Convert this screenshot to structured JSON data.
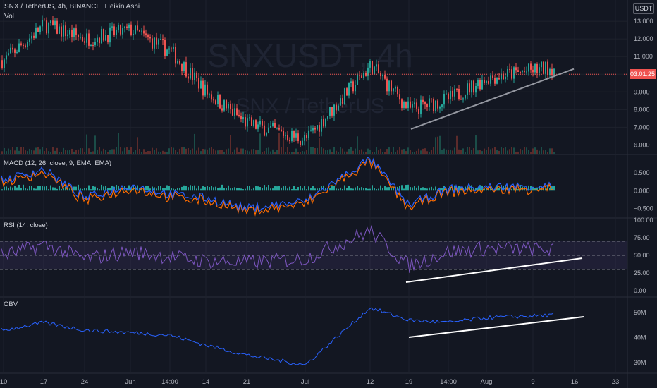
{
  "header": {
    "title": "SNX / TetherUS, 4h, BINANCE, Heikin Ashi",
    "vol_label": "Vol",
    "currency": "USDT",
    "watermark_symbol": "SNXUSDT, 4h",
    "watermark_name": "SNX / TetherUS",
    "last_price_tag": "03:01:25"
  },
  "panels": {
    "macd_label": "MACD (12, 26, close, 9, EMA, EMA)",
    "rsi_label": "RSI (14, close)",
    "obv_label": "OBV"
  },
  "price_axis": [
    "13.000",
    "12.000",
    "11.000",
    "10.000",
    "9.000",
    "8.000",
    "7.000",
    "6.000"
  ],
  "macd_axis": [
    "0.500",
    "0.000",
    "−0.500"
  ],
  "rsi_axis": [
    "100.00",
    "75.00",
    "50.00",
    "25.00",
    "0.00"
  ],
  "obv_axis": [
    "50M",
    "40M",
    "30M"
  ],
  "time_axis": [
    "10",
    "17",
    "24",
    "Jun",
    "14:00",
    "14",
    "21",
    "Jul",
    "12",
    "19",
    "14:00",
    "Aug",
    "9",
    "16",
    "23"
  ],
  "colors": {
    "bg": "#131722",
    "up": "#26a69a",
    "down": "#ef5350",
    "macd_line": "#2962ff",
    "signal_line": "#ff6d00",
    "rsi_line": "#7e57c2",
    "obv_line": "#2962ff",
    "trendline_price": "#9598a1",
    "trendline_indicator": "#ffffff"
  },
  "chart_data": [
    {
      "type": "line",
      "title": "SNX / TetherUS, 4h, BINANCE, Heikin Ashi",
      "x": [
        "10",
        "17",
        "24",
        "Jun",
        "14:00",
        "14",
        "21",
        "Jul",
        "12",
        "19",
        "14:00",
        "Aug",
        "9"
      ],
      "series": [
        {
          "name": "",
          "values": [
            10.8,
            12.8,
            12.0,
            12.5,
            11.3,
            9.0,
            7.2,
            6.3,
            10.5,
            8.0,
            8.6,
            9.8,
            10.4
          ]
        }
      ],
      "ylim": [
        5.5,
        14.2
      ],
      "price_tag": 10.0,
      "trendline": [
        [
          19,
          6.9
        ],
        [
          16,
          10.3
        ]
      ]
    },
    {
      "type": "bar",
      "title": "MACD (12, 26, close, 9, EMA, EMA)",
      "x": [
        "10",
        "17",
        "24",
        "Jun",
        "14:00",
        "14",
        "21",
        "Jul",
        "12",
        "19",
        "14:00",
        "Aug",
        "9"
      ],
      "series": [
        {
          "name": "",
          "values": [
            0.3,
            0.6,
            -0.2,
            0.15,
            -0.1,
            -0.2,
            -0.5,
            -0.3,
            0.9,
            -0.4,
            0.05,
            0.1,
            0.15
          ]
        }
      ],
      "ylim": [
        -0.75,
        1.0
      ]
    },
    {
      "type": "line",
      "title": "RSI (14, close)",
      "x": [
        "10",
        "17",
        "24",
        "Jun",
        "14:00",
        "14",
        "21",
        "Jul",
        "12",
        "19",
        "14:00",
        "Aug",
        "9"
      ],
      "series": [
        {
          "name": "",
          "values": [
            50,
            65,
            45,
            55,
            48,
            42,
            40,
            45,
            85,
            35,
            55,
            60,
            58
          ]
        }
      ],
      "ylim": [
        0,
        100
      ],
      "bands": [
        30,
        70
      ]
    },
    {
      "type": "line",
      "title": "OBV",
      "x": [
        "10",
        "17",
        "24",
        "Jun",
        "14:00",
        "14",
        "21",
        "Jul",
        "12",
        "19",
        "14:00",
        "Aug",
        "9"
      ],
      "series": [
        {
          "name": "",
          "values": [
            43,
            46,
            43,
            42,
            41,
            37,
            33,
            29,
            52,
            47,
            46,
            48,
            49
          ]
        }
      ],
      "ylim": [
        26,
        56
      ]
    }
  ]
}
